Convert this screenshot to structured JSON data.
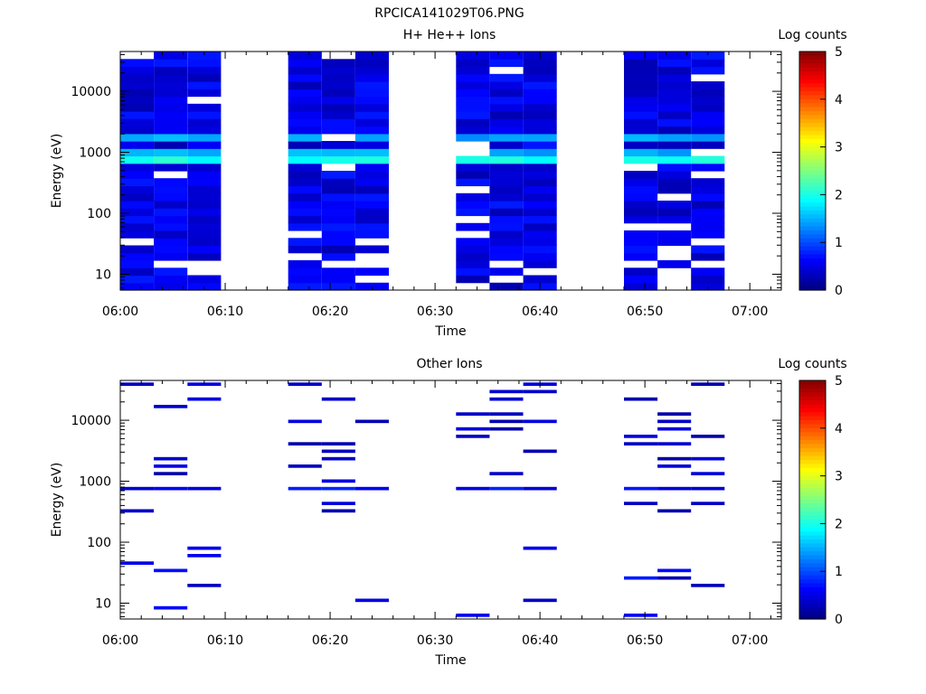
{
  "figure_title": "RPCICA141029T06.PNG",
  "chart_data": [
    {
      "type": "heatmap",
      "title": "H+ He++ Ions",
      "xlabel": "Time",
      "ylabel": "Energy (eV)",
      "x_ticks": [
        "06:00",
        "06:10",
        "06:20",
        "06:30",
        "06:40",
        "06:50",
        "07:00"
      ],
      "x_range_minutes": [
        0,
        63
      ],
      "y_scale": "log",
      "y_range": [
        5.5,
        45000
      ],
      "y_ticks": [
        "10",
        "100",
        "1000",
        "10000"
      ],
      "colorbar": {
        "label": "Log counts",
        "ticks": [
          "0",
          "1",
          "2",
          "3",
          "4",
          "5"
        ],
        "range": [
          0,
          5
        ]
      },
      "sweeps": [
        {
          "start_min": 0.0,
          "end_min": 9.6
        },
        {
          "start_min": 16.0,
          "end_min": 25.6
        },
        {
          "start_min": 32.0,
          "end_min": 41.6
        },
        {
          "start_min": 48.0,
          "end_min": 57.6
        }
      ],
      "approximate_values": {
        "background_log_counts": 0.5,
        "band_energy_eV": 800,
        "band_log_counts": 2.0,
        "secondary_band_energy_eV": 1800,
        "secondary_band_log_counts": 1.5
      }
    },
    {
      "type": "heatmap",
      "title": "Other Ions",
      "xlabel": "Time",
      "ylabel": "Energy (eV)",
      "x_ticks": [
        "06:00",
        "06:10",
        "06:20",
        "06:30",
        "06:40",
        "06:50",
        "07:00"
      ],
      "x_range_minutes": [
        0,
        63
      ],
      "y_scale": "log",
      "y_range": [
        5.5,
        45000
      ],
      "y_ticks": [
        "10",
        "100",
        "1000",
        "10000"
      ],
      "colorbar": {
        "label": "Log counts",
        "ticks": [
          "0",
          "1",
          "2",
          "3",
          "4",
          "5"
        ],
        "range": [
          0,
          5
        ]
      },
      "sweeps": [
        {
          "start_min": 0.0,
          "end_min": 9.6
        },
        {
          "start_min": 16.0,
          "end_min": 25.6
        },
        {
          "start_min": 32.0,
          "end_min": 41.6
        },
        {
          "start_min": 48.0,
          "end_min": 57.6
        }
      ],
      "approximate_values": {
        "sparse_line_log_counts": 0.2,
        "band_energy_eV": 800,
        "band_log_counts": 1.0
      }
    }
  ]
}
